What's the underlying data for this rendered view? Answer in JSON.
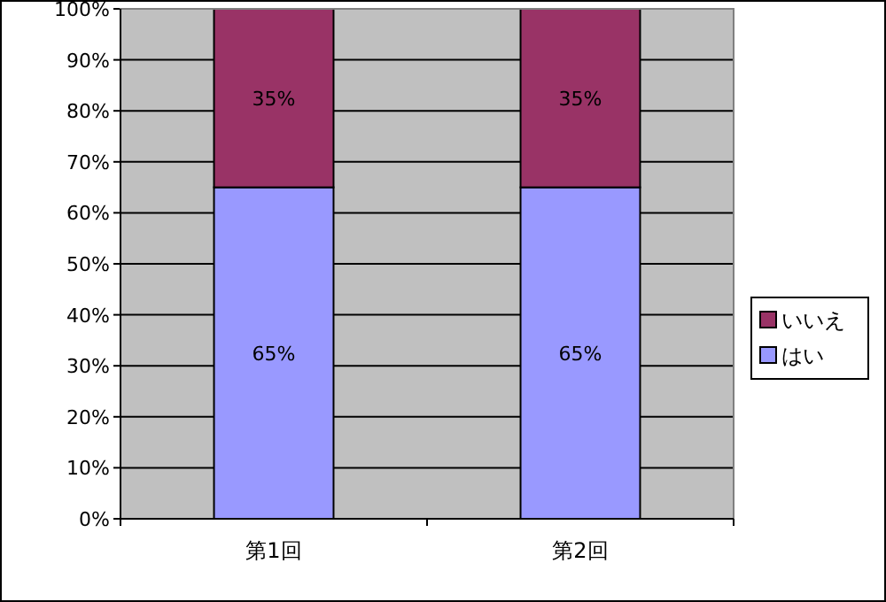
{
  "chart_data": {
    "type": "bar",
    "stacked": true,
    "categories": [
      "第1回",
      "第2回"
    ],
    "series": [
      {
        "name": "はい",
        "color": "#9999ff",
        "values": [
          65,
          65
        ],
        "value_labels": [
          "65%",
          "65%"
        ]
      },
      {
        "name": "いいえ",
        "color": "#993366",
        "values": [
          35,
          35
        ],
        "value_labels": [
          "35%",
          "35%"
        ]
      }
    ],
    "ylim": [
      0,
      100
    ],
    "yticks": [
      {
        "value": 0,
        "label": "0%"
      },
      {
        "value": 10,
        "label": "10%"
      },
      {
        "value": 20,
        "label": "20%"
      },
      {
        "value": 30,
        "label": "30%"
      },
      {
        "value": 40,
        "label": "40%"
      },
      {
        "value": 50,
        "label": "50%"
      },
      {
        "value": 60,
        "label": "60%"
      },
      {
        "value": 70,
        "label": "70%"
      },
      {
        "value": 80,
        "label": "80%"
      },
      {
        "value": 90,
        "label": "90%"
      },
      {
        "value": 100,
        "label": "100%"
      }
    ],
    "grid": "y",
    "legend": "right"
  }
}
